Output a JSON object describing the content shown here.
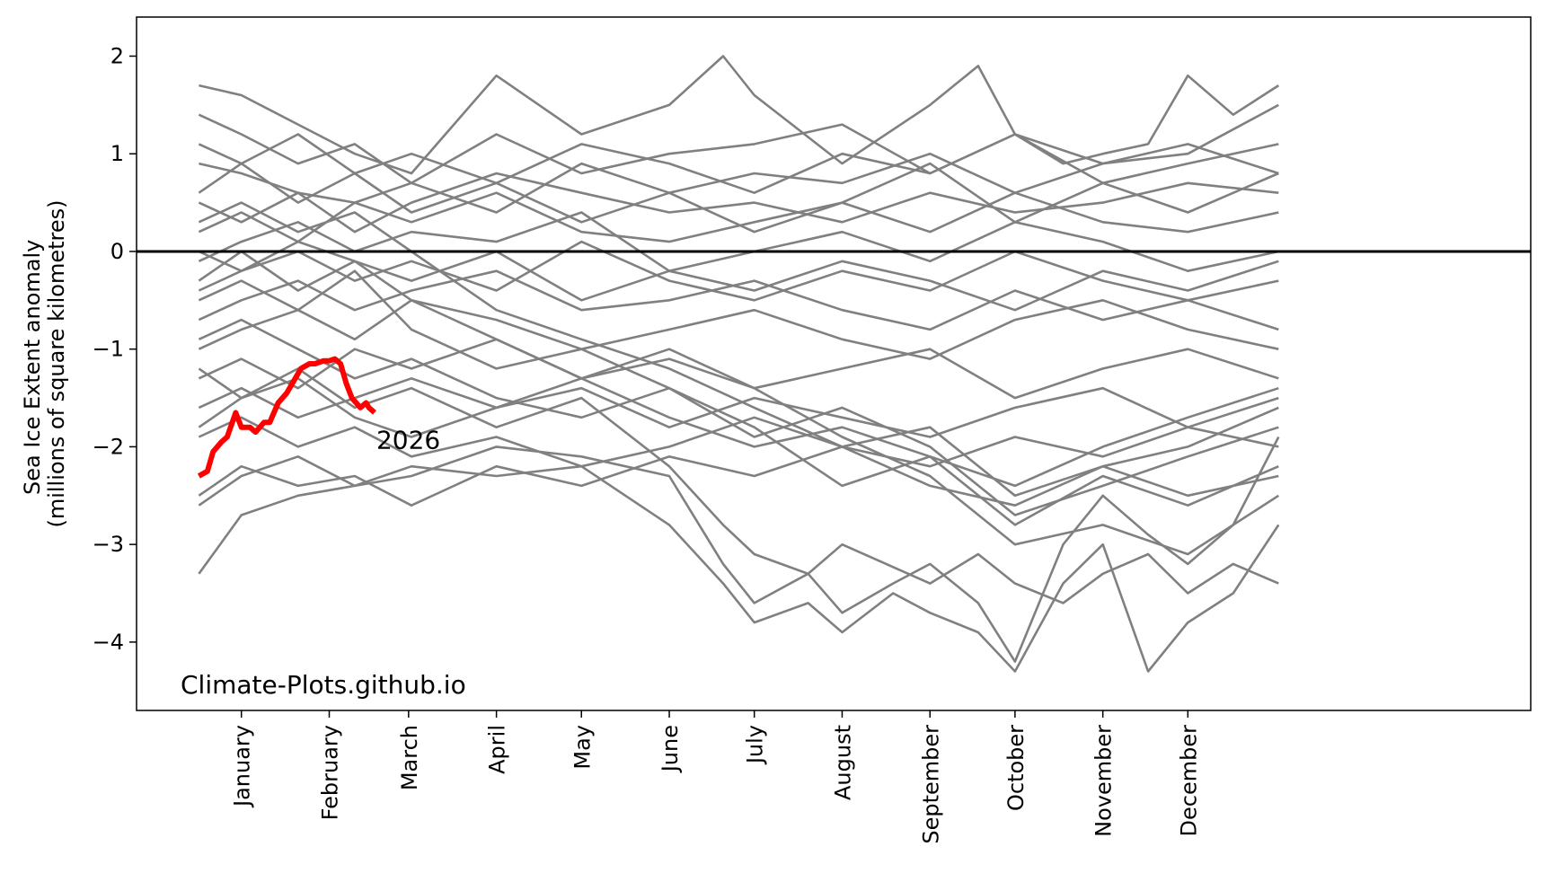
{
  "chart_data": {
    "type": "line",
    "ylabel_line1": "Sea Ice Extent anomaly",
    "ylabel_line2": "(millions of square kilometres)",
    "xlabel": "",
    "ylim": [
      -4.7,
      2.4
    ],
    "xlim": [
      -37,
      455
    ],
    "yticks": [
      2,
      1,
      0,
      -1,
      -2,
      -3,
      -4
    ],
    "ytick_labels": [
      "2",
      "1",
      "0",
      "−1",
      "−2",
      "−3",
      "−4"
    ],
    "xticks": [
      {
        "day": 0,
        "label": "January"
      },
      {
        "day": 31,
        "label": "February"
      },
      {
        "day": 59,
        "label": "March"
      },
      {
        "day": 90,
        "label": "April"
      },
      {
        "day": 120,
        "label": "May"
      },
      {
        "day": 151,
        "label": "June"
      },
      {
        "day": 181,
        "label": "July"
      },
      {
        "day": 212,
        "label": "August"
      },
      {
        "day": 243,
        "label": "September"
      },
      {
        "day": 273,
        "label": "October"
      },
      {
        "day": 304,
        "label": "November"
      },
      {
        "day": 334,
        "label": "December"
      }
    ],
    "zero_line": 0,
    "watermark": "Climate-Plots.github.io",
    "highlight": {
      "label": "2026",
      "color": "#ff0000",
      "x": [
        -15,
        -12,
        -10,
        -7,
        -5,
        -2,
        0,
        3,
        5,
        8,
        10,
        13,
        16,
        19,
        21,
        24,
        26,
        29,
        31,
        33,
        35,
        37,
        39,
        42,
        44,
        45,
        47
      ],
      "y": [
        -2.3,
        -2.25,
        -2.05,
        -1.95,
        -1.9,
        -1.65,
        -1.8,
        -1.8,
        -1.85,
        -1.75,
        -1.75,
        -1.55,
        -1.45,
        -1.3,
        -1.2,
        -1.15,
        -1.15,
        -1.12,
        -1.12,
        -1.1,
        -1.15,
        -1.35,
        -1.5,
        -1.6,
        -1.55,
        -1.6,
        -1.65
      ]
    },
    "background_series_color": "#808080",
    "background_series": [
      {
        "x": [
          -15,
          0,
          20,
          40,
          60,
          90,
          120,
          151,
          170,
          181,
          212,
          243,
          260,
          273,
          290,
          304,
          320,
          334,
          350,
          366
        ],
        "y": [
          1.7,
          1.6,
          1.3,
          1.0,
          0.8,
          1.8,
          1.2,
          1.5,
          2.0,
          1.6,
          0.9,
          1.5,
          1.9,
          1.2,
          0.9,
          1.0,
          1.1,
          1.8,
          1.4,
          1.7
        ]
      },
      {
        "x": [
          -15,
          0,
          20,
          40,
          60,
          90,
          120,
          151,
          181,
          212,
          243,
          273,
          304,
          334,
          366
        ],
        "y": [
          1.4,
          1.2,
          0.9,
          1.1,
          0.7,
          1.2,
          0.8,
          1.0,
          1.1,
          1.3,
          0.8,
          1.2,
          0.9,
          1.0,
          1.5
        ]
      },
      {
        "x": [
          -15,
          0,
          20,
          40,
          60,
          90,
          120,
          151,
          181,
          212,
          243,
          273,
          304,
          334,
          366
        ],
        "y": [
          0.9,
          0.8,
          0.6,
          0.5,
          0.7,
          0.4,
          0.9,
          0.6,
          0.8,
          0.7,
          1.0,
          0.6,
          0.9,
          1.1,
          0.8
        ]
      },
      {
        "x": [
          -15,
          0,
          20,
          40,
          60,
          90,
          120,
          151,
          181,
          212,
          243,
          273,
          304,
          334,
          366
        ],
        "y": [
          0.5,
          0.3,
          0.6,
          0.2,
          0.5,
          0.8,
          0.6,
          0.4,
          0.5,
          0.3,
          0.6,
          0.4,
          0.5,
          0.7,
          0.6
        ]
      },
      {
        "x": [
          -15,
          0,
          20,
          40,
          60,
          90,
          120,
          151,
          181,
          212,
          243,
          273,
          304,
          334,
          366
        ],
        "y": [
          0.2,
          0.4,
          0.1,
          0.5,
          0.3,
          0.6,
          0.2,
          0.1,
          0.3,
          0.5,
          0.2,
          0.6,
          0.3,
          0.2,
          0.4
        ]
      },
      {
        "x": [
          -15,
          0,
          20,
          40,
          60,
          90,
          120,
          151,
          181,
          212,
          243,
          273,
          304,
          334,
          366
        ],
        "y": [
          -0.1,
          0.1,
          0.3,
          0.0,
          0.2,
          0.1,
          0.4,
          -0.2,
          0.0,
          0.2,
          -0.1,
          0.3,
          0.1,
          -0.2,
          0.0
        ]
      },
      {
        "x": [
          -15,
          0,
          20,
          40,
          60,
          90,
          120,
          151,
          181,
          212,
          243,
          273,
          304,
          334,
          366
        ],
        "y": [
          -0.4,
          -0.2,
          0.0,
          -0.3,
          -0.1,
          -0.4,
          0.1,
          -0.3,
          -0.5,
          -0.2,
          -0.4,
          0.0,
          -0.3,
          -0.5,
          -0.3
        ]
      },
      {
        "x": [
          -15,
          0,
          20,
          40,
          60,
          90,
          120,
          151,
          181,
          212,
          243,
          273,
          304,
          334,
          366
        ],
        "y": [
          -0.7,
          -0.5,
          -0.3,
          -0.6,
          -0.4,
          -0.2,
          -0.6,
          -0.5,
          -0.3,
          -0.6,
          -0.8,
          -0.4,
          -0.7,
          -0.5,
          -0.8
        ]
      },
      {
        "x": [
          -15,
          0,
          20,
          40,
          60,
          90,
          120,
          151,
          181,
          212,
          243,
          273,
          304,
          334,
          366
        ],
        "y": [
          -1.0,
          -0.8,
          -0.6,
          -0.9,
          -0.5,
          -0.7,
          -1.0,
          -0.8,
          -0.6,
          -0.9,
          -1.1,
          -0.7,
          -0.5,
          -0.8,
          -1.0
        ]
      },
      {
        "x": [
          -15,
          0,
          20,
          40,
          60,
          90,
          120,
          151,
          181,
          212,
          243,
          273,
          304,
          334,
          366
        ],
        "y": [
          -1.3,
          -1.1,
          -1.4,
          -1.0,
          -1.2,
          -0.9,
          -1.3,
          -1.1,
          -1.4,
          -1.2,
          -1.0,
          -1.5,
          -1.2,
          -1.0,
          -1.3
        ]
      },
      {
        "x": [
          -15,
          0,
          20,
          40,
          60,
          90,
          120,
          151,
          181,
          212,
          243,
          273,
          304,
          334,
          366
        ],
        "y": [
          -1.6,
          -1.4,
          -1.7,
          -1.5,
          -1.3,
          -1.6,
          -1.4,
          -1.8,
          -1.5,
          -1.7,
          -1.9,
          -1.6,
          -1.4,
          -1.8,
          -1.5
        ]
      },
      {
        "x": [
          -15,
          0,
          20,
          40,
          60,
          90,
          120,
          151,
          181,
          212,
          243,
          273,
          304,
          334,
          366
        ],
        "y": [
          -1.9,
          -1.7,
          -2.0,
          -1.8,
          -2.1,
          -1.9,
          -2.2,
          -2.0,
          -1.7,
          -2.0,
          -2.2,
          -1.9,
          -2.1,
          -1.8,
          -2.0
        ]
      },
      {
        "x": [
          -15,
          0,
          20,
          40,
          60,
          90,
          120,
          151,
          181,
          212,
          243,
          273,
          304,
          334,
          366
        ],
        "y": [
          -2.5,
          -2.2,
          -2.4,
          -2.3,
          -2.6,
          -2.2,
          -2.4,
          -2.1,
          -2.3,
          -2.0,
          -2.4,
          -2.6,
          -2.2,
          -2.5,
          -2.3
        ]
      },
      {
        "x": [
          -15,
          0,
          20,
          40,
          60,
          90,
          120,
          151,
          170,
          181,
          200,
          212,
          243,
          260,
          273,
          290,
          304,
          320,
          334,
          350,
          366
        ],
        "y": [
          -3.3,
          -2.7,
          -2.5,
          -2.4,
          -2.3,
          -2.0,
          -2.1,
          -2.3,
          -3.2,
          -3.6,
          -3.3,
          -3.0,
          -3.4,
          -3.1,
          -3.4,
          -3.6,
          -3.3,
          -3.1,
          -3.5,
          -3.2,
          -3.4
        ]
      },
      {
        "x": [
          -15,
          0,
          20,
          40,
          60,
          90,
          120,
          151,
          170,
          181,
          200,
          212,
          230,
          243,
          260,
          273,
          290,
          304,
          320,
          334,
          350,
          366
        ],
        "y": [
          -2.6,
          -2.3,
          -2.1,
          -2.4,
          -2.2,
          -2.3,
          -2.2,
          -2.8,
          -3.4,
          -3.8,
          -3.6,
          -3.9,
          -3.5,
          -3.7,
          -3.9,
          -4.3,
          -3.4,
          -3.0,
          -4.3,
          -3.8,
          -3.5,
          -2.8
        ]
      },
      {
        "x": [
          -15,
          0,
          20,
          40,
          60,
          90,
          120,
          151,
          170,
          181,
          200,
          212,
          230,
          243,
          260,
          273,
          290,
          304,
          320,
          334,
          350,
          366
        ],
        "y": [
          -1.8,
          -1.5,
          -1.2,
          -1.6,
          -1.4,
          -1.8,
          -1.5,
          -2.2,
          -2.8,
          -3.1,
          -3.3,
          -3.7,
          -3.4,
          -3.2,
          -3.6,
          -4.2,
          -3.0,
          -2.5,
          -2.9,
          -3.2,
          -2.8,
          -1.9
        ]
      },
      {
        "x": [
          -15,
          0,
          20,
          40,
          60,
          90,
          120,
          151,
          181,
          212,
          243,
          273,
          304,
          334,
          366
        ],
        "y": [
          -0.5,
          -0.3,
          -0.6,
          -0.2,
          -0.8,
          -1.2,
          -1.0,
          -1.4,
          -1.8,
          -2.4,
          -2.1,
          -2.8,
          -2.3,
          -2.6,
          -2.2
        ]
      },
      {
        "x": [
          -15,
          0,
          20,
          40,
          60,
          90,
          120,
          151,
          181,
          212,
          243,
          273,
          304,
          334,
          366
        ],
        "y": [
          0.3,
          0.5,
          0.2,
          0.4,
          0.0,
          -0.6,
          -0.9,
          -1.2,
          -1.6,
          -2.0,
          -1.8,
          -2.5,
          -2.2,
          -2.0,
          -1.6
        ]
      },
      {
        "x": [
          -15,
          0,
          20,
          40,
          60,
          90,
          120,
          151,
          181,
          212,
          243,
          273,
          304,
          334,
          366
        ],
        "y": [
          0.0,
          -0.2,
          0.1,
          -0.1,
          -0.5,
          -0.9,
          -1.3,
          -1.0,
          -1.4,
          -1.9,
          -2.3,
          -3.0,
          -2.8,
          -3.1,
          -2.5
        ]
      },
      {
        "x": [
          -15,
          0,
          20,
          40,
          60,
          90,
          120,
          151,
          181,
          212,
          243,
          273,
          304,
          334,
          366
        ],
        "y": [
          -0.9,
          -0.7,
          -1.0,
          -1.3,
          -1.1,
          -1.5,
          -1.7,
          -1.4,
          -1.9,
          -1.6,
          -2.0,
          -2.7,
          -2.4,
          -2.1,
          -1.8
        ]
      },
      {
        "x": [
          -15,
          0,
          20,
          40,
          60,
          90,
          120,
          151,
          181,
          212,
          243,
          273,
          304,
          334,
          366
        ],
        "y": [
          0.6,
          0.9,
          0.5,
          0.8,
          0.4,
          0.7,
          0.3,
          0.6,
          0.2,
          0.5,
          0.9,
          0.3,
          0.7,
          0.4,
          0.8
        ]
      },
      {
        "x": [
          -15,
          0,
          20,
          40,
          60,
          90,
          120,
          151,
          181,
          212,
          243,
          273,
          304,
          334,
          366
        ],
        "y": [
          1.1,
          0.9,
          1.2,
          0.8,
          1.0,
          0.7,
          1.1,
          0.9,
          0.6,
          1.0,
          0.8,
          1.2,
          0.7,
          0.9,
          1.1
        ]
      },
      {
        "x": [
          -15,
          0,
          20,
          40,
          60,
          90,
          120,
          151,
          181,
          212,
          243,
          273,
          304,
          334,
          366
        ],
        "y": [
          -0.3,
          0.0,
          -0.4,
          -0.1,
          -0.3,
          0.0,
          -0.5,
          -0.2,
          -0.4,
          -0.1,
          -0.3,
          -0.6,
          -0.2,
          -0.4,
          -0.1
        ]
      },
      {
        "x": [
          -15,
          0,
          20,
          40,
          60,
          90,
          120,
          151,
          181,
          212,
          243,
          273,
          304,
          334,
          366
        ],
        "y": [
          -1.2,
          -1.5,
          -1.3,
          -1.7,
          -1.9,
          -1.6,
          -1.3,
          -1.7,
          -2.0,
          -1.8,
          -2.1,
          -2.4,
          -2.0,
          -1.7,
          -1.4
        ]
      }
    ]
  }
}
